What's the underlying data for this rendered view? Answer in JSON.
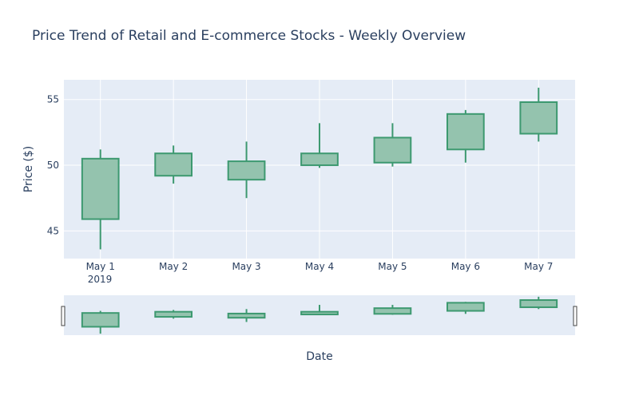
{
  "chart_data": {
    "type": "candlestick",
    "title": "Price Trend of Retail and E-commerce Stocks - Weekly Overview",
    "xlabel": "Date",
    "ylabel": "Price ($)",
    "categories": [
      "May 1",
      "May 2",
      "May 3",
      "May 4",
      "May 5",
      "May 6",
      "May 7"
    ],
    "year_label": "2019",
    "yticks": [
      45,
      50,
      55
    ],
    "ylim": [
      42.9,
      56.5
    ],
    "grid": true,
    "range_slider": true,
    "series": [
      {
        "open": [
          45.9,
          49.2,
          48.9,
          50.0,
          50.2,
          51.2,
          52.4
        ],
        "high": [
          51.2,
          51.5,
          51.8,
          53.2,
          53.2,
          54.2,
          55.9
        ],
        "low": [
          43.6,
          48.6,
          47.5,
          49.8,
          49.9,
          50.2,
          51.8
        ],
        "close": [
          50.5,
          50.9,
          50.3,
          50.9,
          52.1,
          53.9,
          54.8
        ]
      }
    ],
    "colors": {
      "increasing_line": "#3d9970",
      "increasing_fill": "#94c3ae",
      "plot_bg": "#e5ecf6",
      "grid": "#ffffff",
      "text": "#2a3f5f"
    }
  }
}
